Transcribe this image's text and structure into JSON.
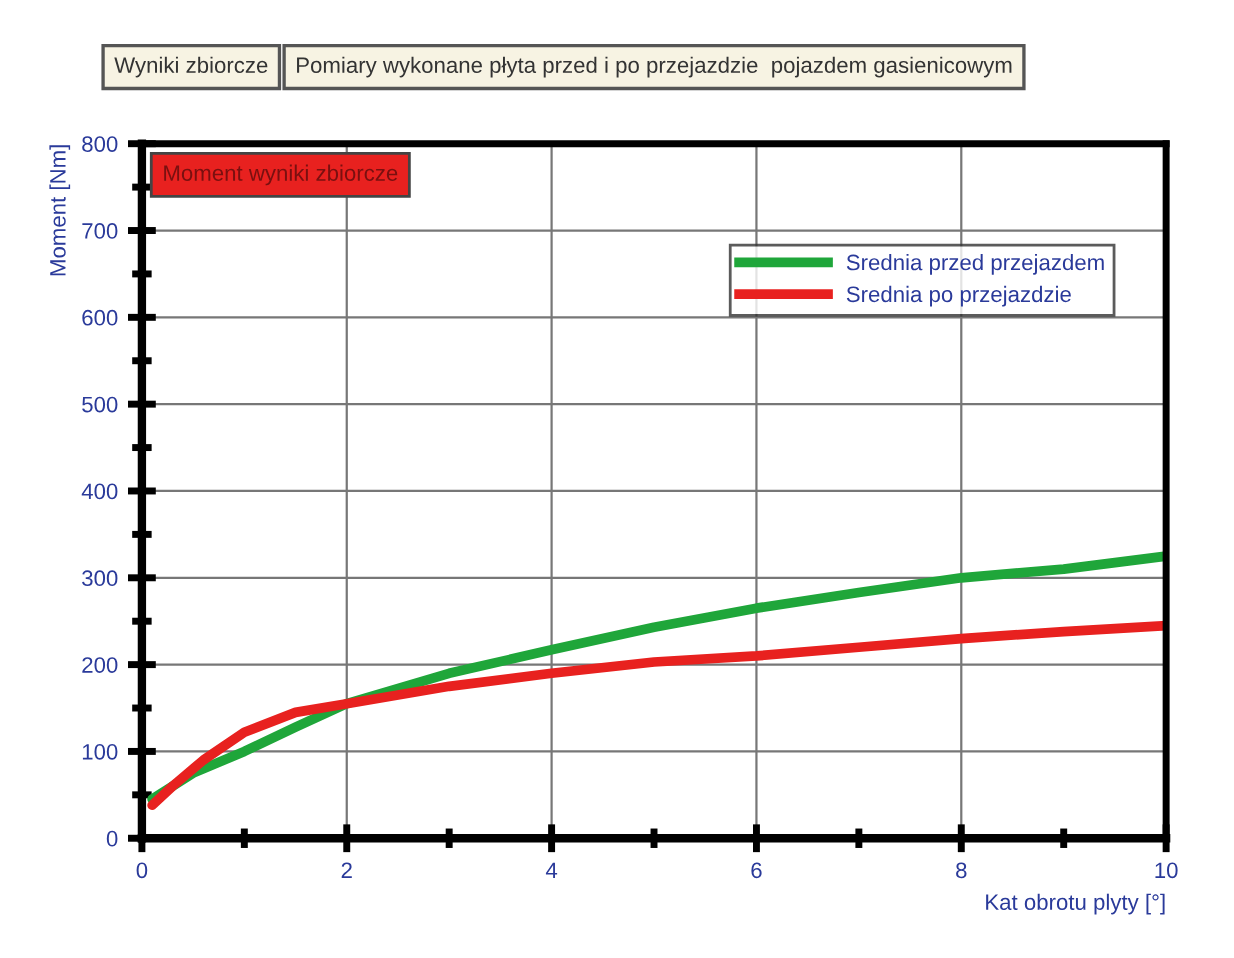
{
  "chart_data": {
    "type": "line",
    "title": "Wyniki zbiorcze",
    "subtitle": "Pomiary wykonane płyta przed i po przejazdzie  pojazdem gasienicowym",
    "xlabel": "Kat obrotu plyty [°]",
    "ylabel": "Moment [Nm]",
    "annotations": [
      "Moment wyniki zbiorcze"
    ],
    "xlim": [
      0,
      10
    ],
    "xticks": [
      0,
      2,
      4,
      6,
      8,
      10
    ],
    "ylim": [
      0,
      800
    ],
    "yticks": [
      0,
      100,
      200,
      300,
      400,
      500,
      600,
      700,
      800
    ],
    "grid": true,
    "legend": "top right",
    "marker": "none",
    "line_style": "solid",
    "series": [
      {
        "name": "Srednia przed przejazdem",
        "color": "#1fa63a",
        "x": [
          0.1,
          0.5,
          1,
          1.5,
          2,
          3,
          4,
          5,
          6,
          7,
          8,
          9,
          10
        ],
        "values": [
          45,
          75,
          100,
          128,
          155,
          190,
          217,
          243,
          265,
          283,
          300,
          310,
          325
        ]
      },
      {
        "name": "Srednia po przejazdzie",
        "color": "#e8211f",
        "x": [
          0.1,
          0.3,
          0.6,
          1,
          1.5,
          2,
          3,
          4,
          5,
          6,
          7,
          8,
          9,
          10
        ],
        "values": [
          38,
          60,
          90,
          122,
          145,
          155,
          175,
          190,
          203,
          210,
          220,
          230,
          238,
          245
        ]
      }
    ]
  }
}
